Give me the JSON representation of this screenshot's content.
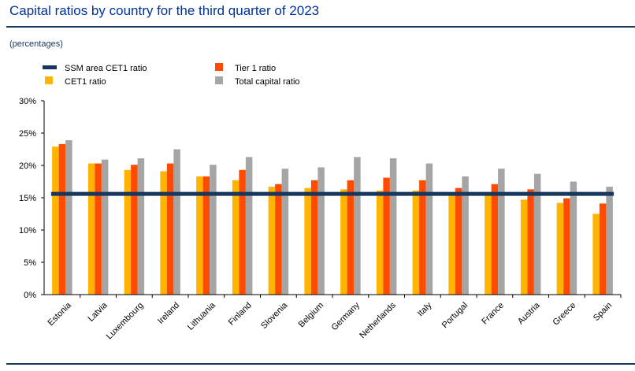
{
  "title": "Capital ratios by country for the third quarter of 2023",
  "subtitle": "(percentages)",
  "chart_data": {
    "type": "bar",
    "categories": [
      "Estonia",
      "Latvia",
      "Luxembourg",
      "Ireland",
      "Lithuania",
      "Finland",
      "Slovenia",
      "Belgium",
      "Germany",
      "Netherlands",
      "Italy",
      "Portugal",
      "France",
      "Austria",
      "Greece",
      "Spain"
    ],
    "series": [
      {
        "name": "CET1 ratio",
        "color": "#ffb400",
        "values": [
          22.9,
          20.3,
          19.3,
          19.1,
          18.3,
          17.7,
          16.7,
          16.5,
          16.3,
          16.1,
          16.1,
          15.3,
          15.6,
          14.7,
          14.2,
          12.5
        ]
      },
      {
        "name": "Tier 1 ratio",
        "color": "#ff4b00",
        "values": [
          23.3,
          20.3,
          20.1,
          20.3,
          18.3,
          19.3,
          17.1,
          17.7,
          17.7,
          18.1,
          17.7,
          16.5,
          17.1,
          16.3,
          14.9,
          14.1
        ]
      },
      {
        "name": "Total capital ratio",
        "color": "#a5a5a5",
        "values": [
          23.9,
          20.9,
          21.1,
          22.5,
          20.1,
          21.3,
          19.5,
          19.7,
          21.3,
          21.1,
          20.3,
          18.3,
          19.5,
          18.7,
          17.5,
          16.7
        ]
      }
    ],
    "reference_line": {
      "name": "SSM area CET1 ratio",
      "color": "#17375e",
      "value": 15.6
    },
    "legend_order": [
      "SSM area CET1 ratio",
      "Tier 1 ratio",
      "CET1 ratio",
      "Total capital ratio"
    ],
    "yticks": [
      "0%",
      "5%",
      "10%",
      "15%",
      "20%",
      "25%",
      "30%"
    ],
    "ylim": [
      0,
      30
    ],
    "grid": false,
    "legend_position": "top-left"
  }
}
